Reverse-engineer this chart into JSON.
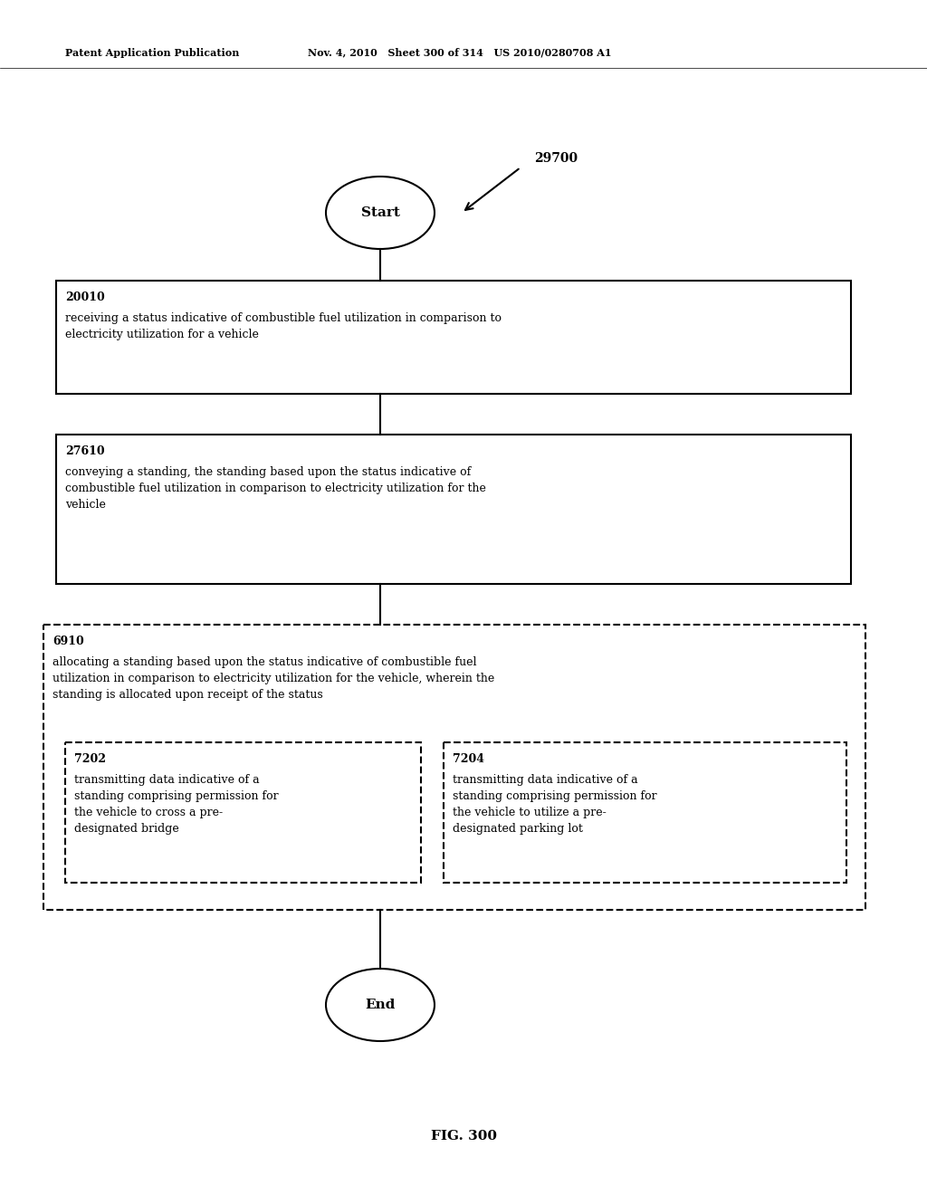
{
  "header_left": "Patent Application Publication",
  "header_mid": "Nov. 4, 2010   Sheet 300 of 314   US 2010/0280708 A1",
  "fig_label": "FIG. 300",
  "ref_number": "29700",
  "start_label": "Start",
  "end_label": "End",
  "box1_id": "20010",
  "box1_text": "receiving a status indicative of combustible fuel utilization in comparison to\nelectricity utilization for a vehicle",
  "box2_id": "27610",
  "box2_text": "conveying a standing, the standing based upon the status indicative of\ncombustible fuel utilization in comparison to electricity utilization for the\nvehicle",
  "outer_box_id": "6910",
  "outer_box_text": "allocating a standing based upon the status indicative of combustible fuel\nutilization in comparison to electricity utilization for the vehicle, wherein the\nstanding is allocated upon receipt of the status",
  "inner_box1_id": "7202",
  "inner_box1_text": "transmitting data indicative of a\nstanding comprising permission for\nthe vehicle to cross a pre-\ndesignated bridge",
  "inner_box2_id": "7204",
  "inner_box2_text": "transmitting data indicative of a\nstanding comprising permission for\nthe vehicle to utilize a pre-\ndesignated parking lot",
  "background_color": "#ffffff",
  "text_color": "#000000",
  "line_color": "#000000"
}
